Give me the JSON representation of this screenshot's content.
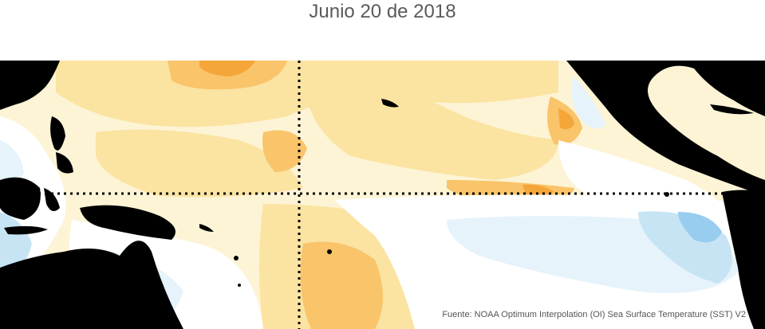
{
  "map": {
    "title": "Junio 20 de 2018",
    "source": "Fuente: NOAA Optimum Interpolation (OI) Sea Surface Temperature (SST) V2",
    "colors": {
      "land": "#000000",
      "ocean_neutral": "#ffffff",
      "warm_light": "#fdf4d6",
      "warm_mid": "#fbe3a1",
      "warm_strong": "#f9c46a",
      "warm_peak": "#f5a638",
      "cool_light": "#e6f3fb",
      "cool_mid": "#c7e4f5",
      "cool_strong": "#98cdef",
      "reference_line": "#000000"
    }
  }
}
